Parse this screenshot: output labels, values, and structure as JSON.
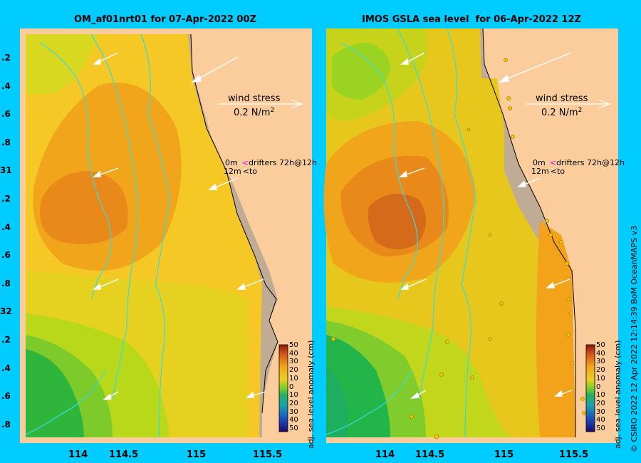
{
  "panels": [
    {
      "title": "OM_af01nrt01 for 07-Apr-2022 00Z"
    },
    {
      "title": "IMOS GSLA sea level  for 06-Apr-2022 12Z"
    }
  ],
  "lat_labels": [
    ".2",
    ".4",
    ".6",
    ".8",
    "31",
    ".2",
    ".4",
    ".6",
    ".8",
    "32",
    ".2",
    ".4",
    ".6",
    ".8"
  ],
  "lon_labels": [
    "114",
    "114.5",
    "115",
    "115.5"
  ],
  "wind_stress": {
    "label": "wind stress",
    "value_text": "0.2 N/m",
    "exponent": "2"
  },
  "drifters": {
    "line1_prefix": "0m",
    "line1_suffix": "drifters 72h@12h",
    "line2_prefix": "12m",
    "line2_suffix": "to"
  },
  "colorbar": {
    "title": "adj. sea level anomaly (cm)",
    "labels": [
      "50",
      "40",
      "30",
      "20",
      "10",
      "0",
      "10",
      "20",
      "30",
      "40",
      "50"
    ]
  },
  "copyright": "© CSIRO 2022   12 Apr 2022 12:14:39 BoM OceanMAPS v3",
  "colors": {
    "background": "#00ccff",
    "land": "#fccd9c",
    "coast": "#c8a882",
    "mask": "#c0ab94"
  }
}
